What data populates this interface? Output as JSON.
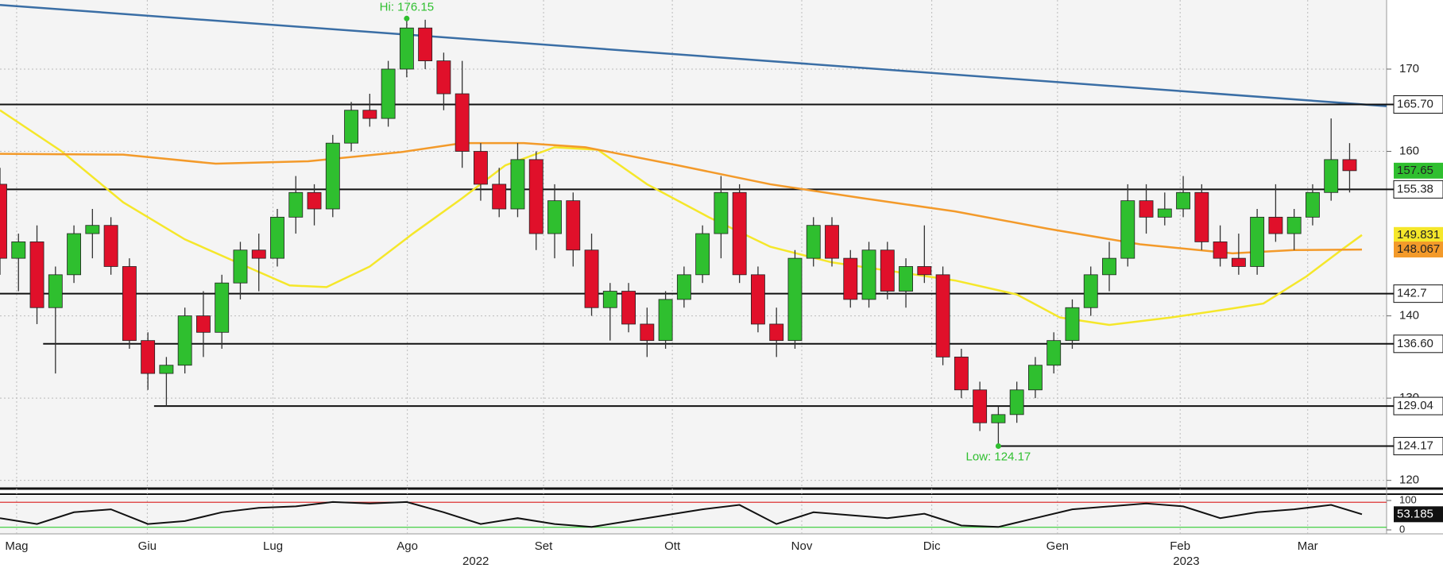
{
  "chart_data": {
    "type": "candlestick",
    "xlim": [
      0,
      225
    ],
    "ylim": [
      119.1,
      178.4
    ],
    "yticks": [
      120,
      130,
      140,
      160,
      170
    ],
    "grid": true,
    "xticks": [
      {
        "value": 2.7,
        "label": "Mag"
      },
      {
        "value": 23.9,
        "label": "Giu"
      },
      {
        "value": 44.3,
        "label": "Lug"
      },
      {
        "value": 66.1,
        "label": "Ago"
      },
      {
        "value": 88.2,
        "label": "Set"
      },
      {
        "value": 109.1,
        "label": "Ott"
      },
      {
        "value": 130.1,
        "label": "Nov"
      },
      {
        "value": 151.2,
        "label": "Dic"
      },
      {
        "value": 171.6,
        "label": "Gen"
      },
      {
        "value": 191.5,
        "label": "Feb"
      },
      {
        "value": 212.2,
        "label": "Mar"
      }
    ],
    "year_ticks": [
      {
        "value": 77.2,
        "label": "2022"
      },
      {
        "value": 192.5,
        "label": "2023"
      }
    ],
    "up_color": "#2fbf2f",
    "down_color": "#e0102a",
    "x": [
      0,
      3,
      6,
      9,
      12,
      15,
      18,
      21,
      24,
      27,
      30,
      33,
      36,
      39,
      42,
      45,
      48,
      51,
      54,
      57,
      60,
      63,
      66,
      69,
      72,
      75,
      78,
      81,
      84,
      87,
      90,
      93,
      96,
      99,
      102,
      105,
      108,
      111,
      114,
      117,
      120,
      123,
      126,
      129,
      132,
      135,
      138,
      141,
      144,
      147,
      150,
      153,
      156,
      159,
      162,
      165,
      168,
      171,
      174,
      177,
      180,
      183,
      186,
      189,
      192,
      195,
      198,
      201,
      204,
      207,
      210,
      213,
      216,
      219
    ],
    "open": [
      156,
      147,
      149,
      141,
      145,
      150,
      151,
      146,
      137,
      133,
      134,
      140,
      138,
      144,
      148,
      147,
      152,
      155,
      153,
      161,
      165,
      164,
      170,
      175,
      171,
      167,
      160,
      156,
      153,
      159,
      150,
      154,
      148,
      141,
      143,
      139,
      137,
      142,
      145,
      150,
      155,
      145,
      139,
      137,
      147,
      151,
      147,
      142,
      148,
      143,
      146,
      145,
      135,
      131,
      127,
      128,
      131,
      134,
      137,
      141,
      145,
      147,
      154,
      152,
      153,
      155,
      149,
      147,
      146,
      152,
      150,
      152,
      155,
      159
    ],
    "high": [
      158,
      150,
      151,
      146,
      151,
      153,
      152,
      147,
      138,
      135,
      141,
      143,
      145,
      149,
      150,
      153,
      157,
      156,
      162,
      166,
      167,
      171,
      176.15,
      176,
      172,
      171,
      161,
      158,
      161,
      160,
      156,
      155,
      150,
      144,
      144,
      141,
      143,
      146,
      151,
      157,
      156,
      146,
      141,
      148,
      152,
      152,
      148,
      149,
      149,
      147,
      151,
      146,
      136,
      132,
      129,
      132,
      135,
      138,
      142,
      146,
      149,
      156,
      156,
      155,
      157,
      156,
      151,
      150,
      153,
      156,
      153,
      156,
      164,
      161
    ],
    "low": [
      145,
      143,
      139,
      133,
      144,
      147,
      145,
      136,
      131,
      129,
      133,
      135,
      136,
      142,
      143,
      146,
      150,
      151,
      152,
      160,
      163,
      163,
      169,
      170,
      165,
      158,
      154,
      152,
      152,
      148,
      147,
      146,
      140,
      137,
      138,
      135,
      136,
      141,
      144,
      147,
      144,
      138,
      135,
      136,
      146,
      146,
      141,
      141,
      142,
      141,
      144,
      134,
      130,
      126,
      124.17,
      127,
      130,
      133,
      136,
      140,
      143,
      146,
      150,
      151,
      152,
      148,
      146,
      145,
      145,
      149,
      148,
      151,
      154,
      155
    ],
    "close": [
      147,
      149,
      141,
      145,
      150,
      151,
      146,
      137,
      133,
      134,
      140,
      138,
      144,
      148,
      147,
      152,
      155,
      153,
      161,
      165,
      164,
      170,
      175,
      171,
      167,
      160,
      156,
      153,
      159,
      150,
      154,
      148,
      141,
      143,
      139,
      137,
      142,
      145,
      150,
      155,
      145,
      139,
      137,
      147,
      151,
      147,
      142,
      148,
      143,
      146,
      145,
      135,
      131,
      127,
      128,
      131,
      134,
      137,
      141,
      145,
      147,
      154,
      152,
      153,
      155,
      149,
      147,
      146,
      152,
      150,
      152,
      155,
      159,
      157.65
    ],
    "last": {
      "value": 157.65,
      "label": "157.65",
      "color": "#2fbf2f"
    },
    "moving_averages": [
      {
        "color": "#f5e72a",
        "x": [
          0,
          10,
          20,
          30,
          40,
          47,
          53,
          60,
          67,
          75,
          82,
          90,
          97,
          105,
          115,
          125,
          135,
          145,
          155,
          165,
          172,
          180,
          190,
          200,
          205,
          212,
          218,
          221
        ],
        "values": [
          165,
          160,
          153.8,
          149.3,
          146,
          143.7,
          143.5,
          146,
          150,
          154.3,
          158.3,
          160.5,
          160.2,
          156,
          152,
          148.4,
          146.5,
          145.4,
          144.3,
          142.6,
          139.8,
          138.9,
          139.8,
          140.9,
          141.5,
          144.8,
          148.2,
          149.831
        ],
        "label": "149.831"
      },
      {
        "color": "#f39a2a",
        "x": [
          0,
          20,
          35,
          50,
          65,
          75,
          85,
          95,
          110,
          125,
          140,
          155,
          170,
          185,
          200,
          210,
          221
        ],
        "values": [
          159.7,
          159.6,
          158.5,
          158.8,
          159.9,
          161,
          161,
          160.5,
          158.3,
          156,
          154.3,
          152.7,
          150.6,
          148.7,
          147.6,
          148,
          148.067
        ],
        "label": "148.067"
      }
    ],
    "trendline": {
      "color": "#3a6ea5",
      "x": [
        0,
        225
      ],
      "values": [
        177.8,
        165.5
      ]
    },
    "levels": [
      {
        "value": 165.7,
        "label": "165.70",
        "x_start": 0
      },
      {
        "value": 155.38,
        "label": "155.38",
        "x_start": 0
      },
      {
        "value": 142.7,
        "label": "142.7",
        "x_start": 0
      },
      {
        "value": 136.6,
        "label": "136.60",
        "x_start": 7
      },
      {
        "value": 129.04,
        "label": "129.04",
        "x_start": 25
      },
      {
        "value": 124.17,
        "label": "124.17",
        "x_start": 162
      }
    ],
    "annotations": [
      {
        "x": 66,
        "value": 176.15,
        "label": "Hi: 176.15",
        "position": "above"
      },
      {
        "x": 162,
        "value": 124.17,
        "label": "Low: 124.17",
        "position": "below"
      }
    ],
    "rsi": {
      "ylim": [
        0,
        100
      ],
      "yticks": [
        0,
        100
      ],
      "color": "#111",
      "levels": [
        {
          "value": 94,
          "color": "#d33"
        },
        {
          "value": 9,
          "color": "#3c3"
        }
      ],
      "x": [
        0,
        6,
        12,
        18,
        24,
        30,
        36,
        42,
        48,
        54,
        60,
        66,
        72,
        78,
        84,
        90,
        96,
        102,
        108,
        114,
        120,
        126,
        132,
        138,
        144,
        150,
        156,
        162,
        168,
        174,
        180,
        186,
        192,
        198,
        204,
        210,
        216,
        221
      ],
      "values": [
        40,
        20,
        60,
        70,
        20,
        30,
        60,
        75,
        80,
        95,
        90,
        95,
        60,
        20,
        40,
        20,
        10,
        30,
        50,
        70,
        85,
        20,
        60,
        50,
        40,
        55,
        15,
        10,
        40,
        70,
        80,
        90,
        80,
        40,
        60,
        70,
        85,
        53.185
      ],
      "last_label": "53.185"
    }
  }
}
